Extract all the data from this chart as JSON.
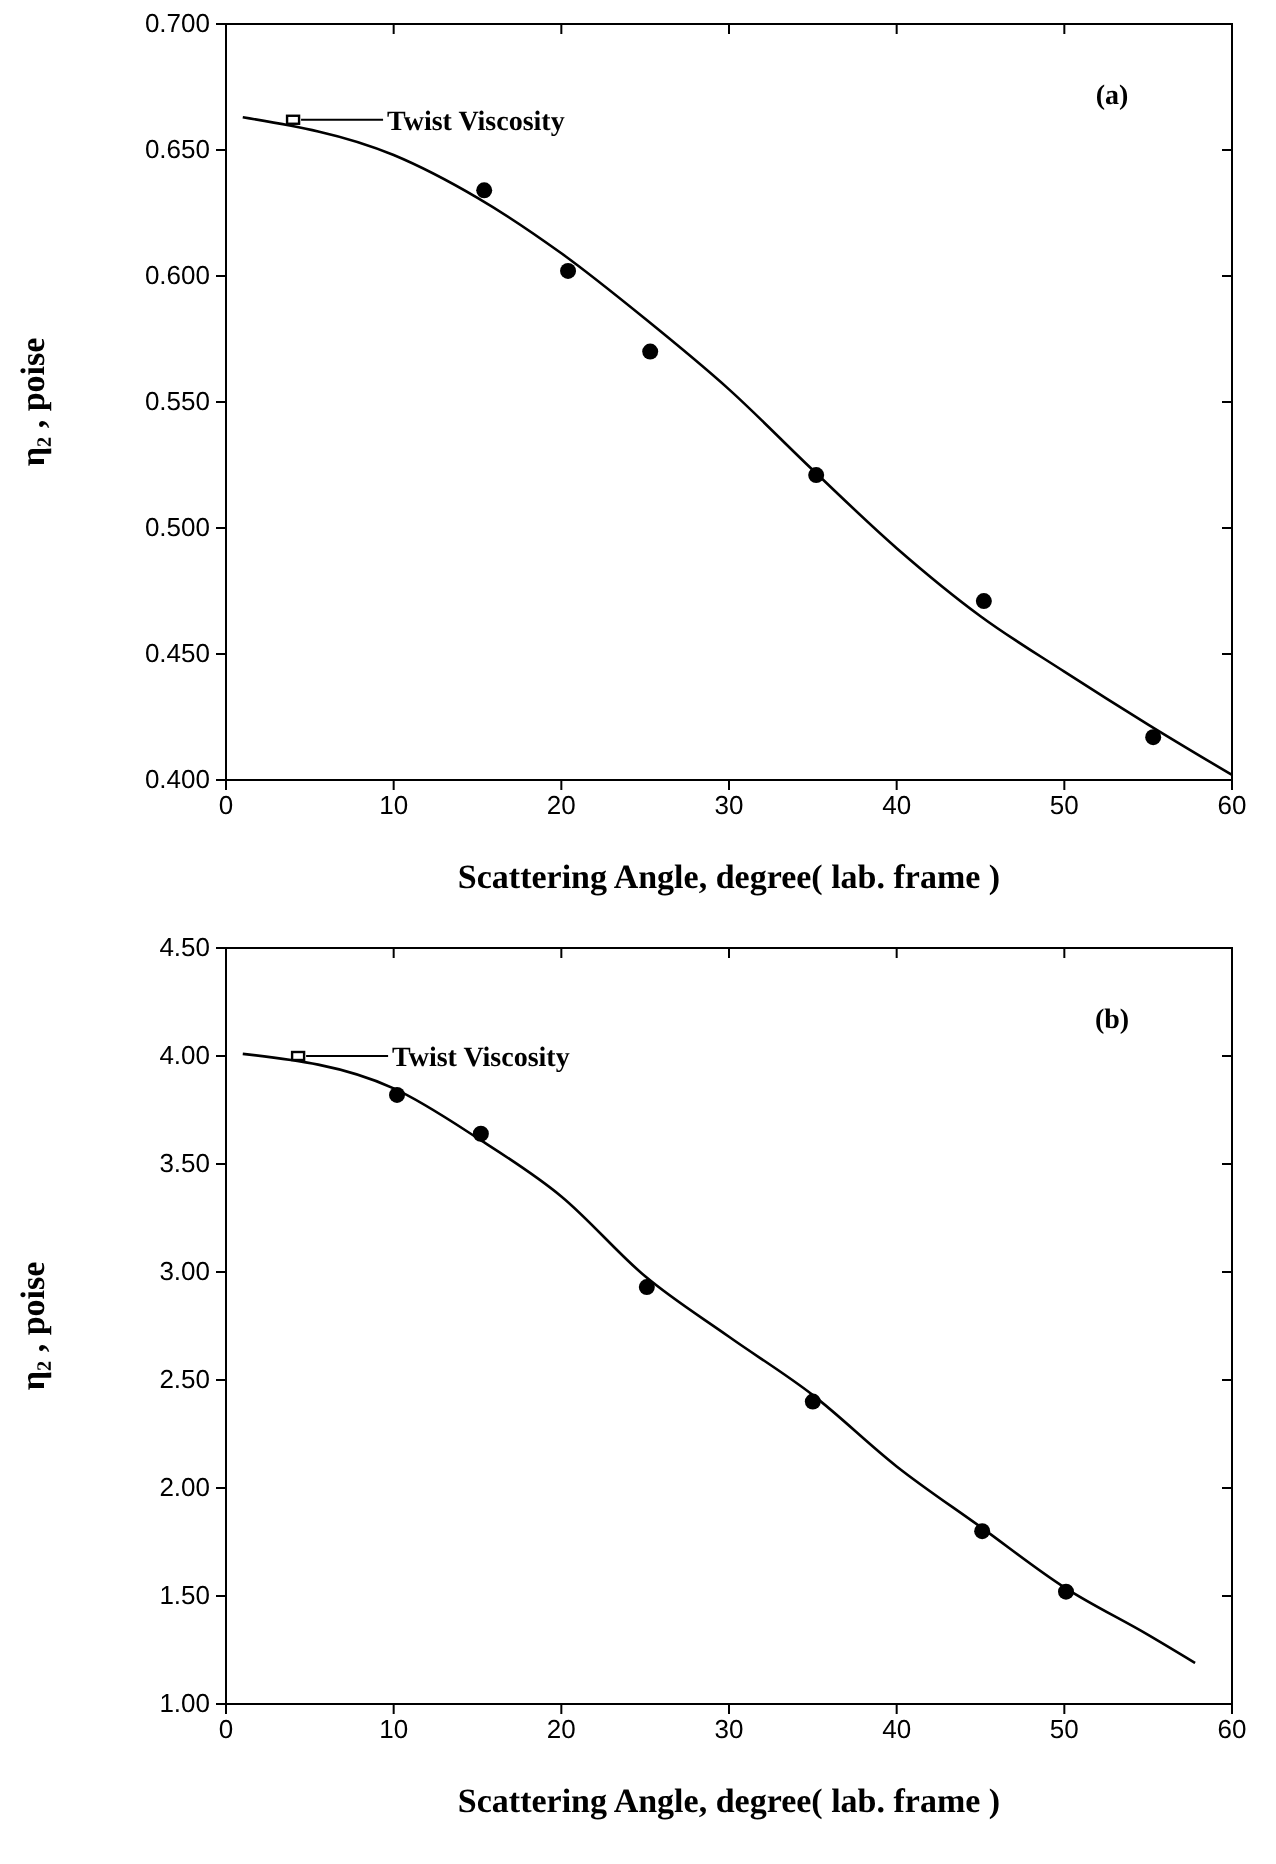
{
  "chart_data": [
    {
      "type": "scatter",
      "xlabel": "Scattering Angle, degree( lab. frame )",
      "ylabel": "η₂ , poise",
      "xlim": [
        0,
        60
      ],
      "xticks": [
        0,
        10,
        20,
        30,
        40,
        50,
        60
      ],
      "ylim": [
        0.4,
        0.7
      ],
      "yticks": [
        {
          "value": 0.4,
          "label": "0.400"
        },
        {
          "value": 0.45,
          "label": "0.450"
        },
        {
          "value": 0.5,
          "label": "0.500"
        },
        {
          "value": 0.55,
          "label": "0.550"
        },
        {
          "value": 0.6,
          "label": "0.600"
        },
        {
          "value": 0.65,
          "label": "0.650"
        },
        {
          "value": 0.7,
          "label": "0.700"
        }
      ],
      "series": [
        {
          "type": "scatter",
          "marker": "circle",
          "color": "#000000",
          "x": [
            15.4,
            20.4,
            25.3,
            35.2,
            45.2,
            55.3
          ],
          "values": [
            0.634,
            0.602,
            0.57,
            0.521,
            0.471,
            0.417
          ]
        },
        {
          "type": "line",
          "marker": "none",
          "line_style": "solid",
          "color": "#000000",
          "x": [
            1,
            10,
            15,
            20,
            25,
            30,
            35,
            40,
            45,
            50,
            55,
            60
          ],
          "values": [
            0.663,
            0.648,
            0.631,
            0.609,
            0.583,
            0.555,
            0.523,
            0.492,
            0.465,
            0.443,
            0.422,
            0.402
          ]
        },
        {
          "type": "scatter",
          "marker": "square",
          "color": "#000000",
          "x": [
            4
          ],
          "values": [
            0.662
          ]
        }
      ],
      "annotations": [
        "Twist Viscosity",
        "(a)"
      ]
    },
    {
      "type": "scatter",
      "xlabel": "Scattering Angle, degree( lab. frame )",
      "ylabel": "η₂ , poise",
      "xlim": [
        0,
        60
      ],
      "xticks": [
        0,
        10,
        20,
        30,
        40,
        50,
        60
      ],
      "ylim": [
        1,
        4.5
      ],
      "yticks": [
        {
          "value": 1,
          "label": "1.00"
        },
        {
          "value": 1.5,
          "label": "1.50"
        },
        {
          "value": 2,
          "label": "2.00"
        },
        {
          "value": 2.5,
          "label": "2.50"
        },
        {
          "value": 3,
          "label": "3.00"
        },
        {
          "value": 3.5,
          "label": "3.50"
        },
        {
          "value": 4,
          "label": "4.00"
        },
        {
          "value": 4.5,
          "label": "4.50"
        }
      ],
      "series": [
        {
          "type": "scatter",
          "marker": "circle",
          "color": "#000000",
          "x": [
            10.2,
            15.2,
            25.1,
            35,
            45.1,
            50.1
          ],
          "values": [
            3.82,
            3.64,
            2.93,
            2.4,
            1.8,
            1.52
          ]
        },
        {
          "type": "line",
          "marker": "none",
          "line_style": "solid",
          "color": "#000000",
          "x": [
            1,
            10,
            15,
            20,
            25,
            30,
            35,
            40,
            45,
            50,
            55,
            57.8
          ],
          "values": [
            4.01,
            3.85,
            3.62,
            3.35,
            2.98,
            2.7,
            2.43,
            2.1,
            1.82,
            1.54,
            1.32,
            1.19
          ]
        },
        {
          "type": "scatter",
          "marker": "square",
          "color": "#000000",
          "x": [
            4.3
          ],
          "values": [
            4
          ]
        }
      ],
      "annotations": [
        "Twist Viscosity",
        "(b)"
      ]
    }
  ]
}
